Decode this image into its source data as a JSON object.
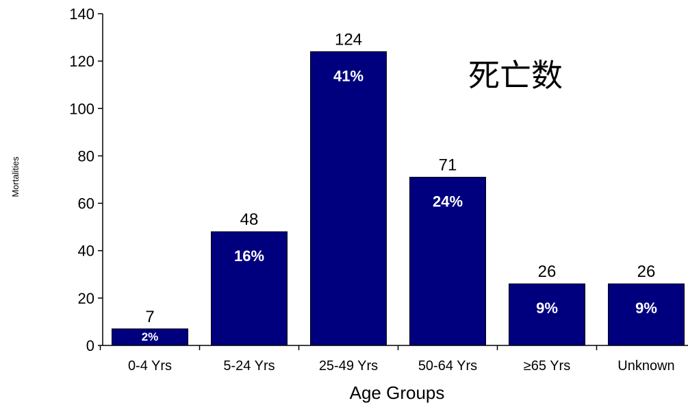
{
  "chart_data": {
    "type": "bar",
    "categories": [
      "0-4 Yrs",
      "5-24 Yrs",
      "25-49 Yrs",
      "50-64 Yrs",
      "≥65  Yrs",
      "Unknown"
    ],
    "values": [
      7,
      48,
      124,
      71,
      26,
      26
    ],
    "percent_labels": [
      "2%",
      "16%",
      "41%",
      "24%",
      "9%",
      "9%"
    ],
    "xlabel": "Age Groups",
    "ylabel": "Mortalities",
    "ylim": [
      0,
      140
    ],
    "yticks": [
      0,
      20,
      40,
      60,
      80,
      100,
      120,
      140
    ],
    "annotation": "死亡数",
    "bar_color": "#00007F",
    "grid": false,
    "legend": "none"
  }
}
